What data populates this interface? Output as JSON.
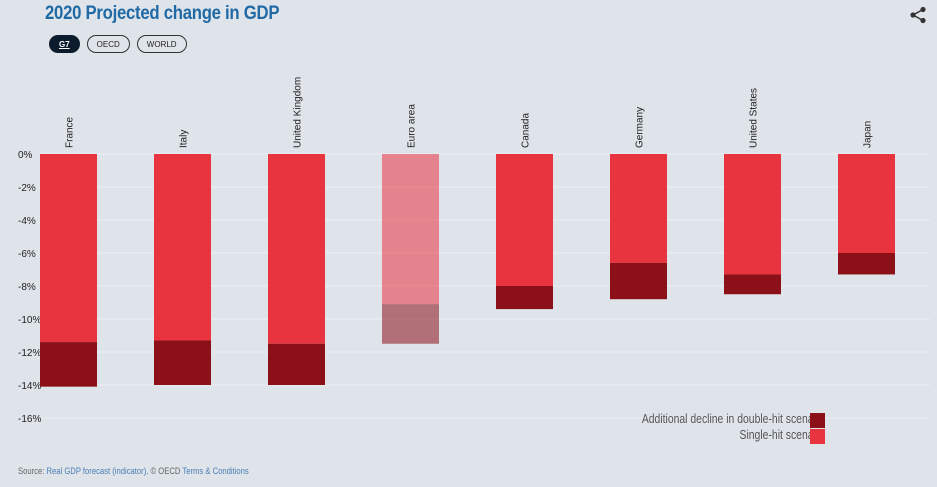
{
  "title": "2020 Projected change in GDP",
  "filters": [
    {
      "label": "G7",
      "active": true
    },
    {
      "label": "OECD",
      "active": false
    },
    {
      "label": "WORLD",
      "active": false
    }
  ],
  "share_icon": "share-icon",
  "chart_data": {
    "type": "bar",
    "stacked": true,
    "categories": [
      "France",
      "Italy",
      "United Kingdom",
      "Euro area",
      "Canada",
      "Germany",
      "United States",
      "Japan"
    ],
    "series": [
      {
        "name": "Single-hit scenario",
        "color": "#e8343f",
        "values": [
          -11.4,
          -11.3,
          -11.5,
          -9.1,
          -8.0,
          -6.6,
          -7.3,
          -6.0
        ]
      },
      {
        "name": "Additional decline in double-hit scenario",
        "color": "#8b1017",
        "values": [
          -2.7,
          -2.7,
          -2.5,
          -2.4,
          -1.4,
          -2.2,
          -1.2,
          -1.3
        ]
      }
    ],
    "double_hit_totals": [
      -14.1,
      -14.0,
      -14.0,
      -11.5,
      -9.4,
      -8.8,
      -8.5,
      -7.3
    ],
    "dimmed_category": "Euro area",
    "yticks": [
      "0%",
      "-2%",
      "-4%",
      "-6%",
      "-8%",
      "-10%",
      "-12%",
      "-14%",
      "-16%"
    ],
    "ylim": [
      -16,
      0
    ],
    "grid": true,
    "legend_position": "bottom-right"
  },
  "source": {
    "prefix": "Source: ",
    "link": "Real GDP forecast (indicator)",
    "middle": ". © OECD ",
    "terms": "Terms & Conditions"
  }
}
